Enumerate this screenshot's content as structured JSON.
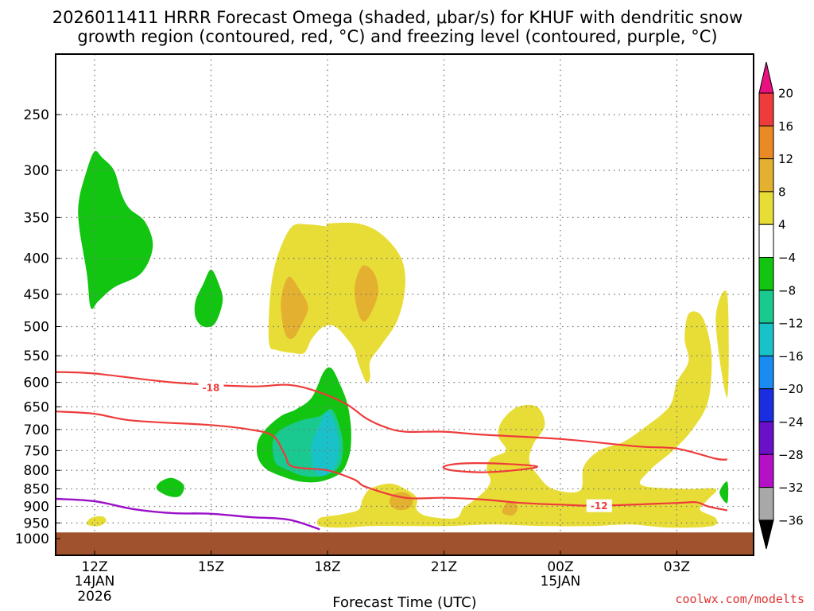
{
  "title_line1": "2026011411 HRRR Forecast Omega (shaded, μbar/s) for KHUF with dendritic snow",
  "title_line2": "growth region (contoured, red, °C) and freezing level (contoured, purple, °C)",
  "credit": "coolwx.com/modelts",
  "colors": {
    "frame": "#000000",
    "grid": "#777777",
    "terrain": "#a0522d",
    "dgz": "#ee3b3b",
    "freezing": "#9a10c8",
    "credit": "#e03030"
  },
  "chart_data": {
    "type": "contour",
    "title": "2026011411 HRRR Forecast Omega (shaded, μbar/s) for KHUF with dendritic snow growth region (contoured, red, °C) and freezing level (contoured, purple, °C)",
    "xlabel": "Forecast Time (UTC)",
    "ylabel": "",
    "xlim": [
      11,
      28.3
    ],
    "ylim_hpa": [
      1000,
      200
    ],
    "y_scale": "log-pressure",
    "grid": true,
    "x_ticks": [
      {
        "hour": 12,
        "label": "12Z",
        "sub1": "14JAN",
        "sub2": "2026"
      },
      {
        "hour": 15,
        "label": "15Z",
        "sub1": "",
        "sub2": ""
      },
      {
        "hour": 18,
        "label": "18Z",
        "sub1": "",
        "sub2": ""
      },
      {
        "hour": 21,
        "label": "21Z",
        "sub1": "",
        "sub2": ""
      },
      {
        "hour": 24,
        "label": "00Z",
        "sub1": "15JAN",
        "sub2": ""
      },
      {
        "hour": 27,
        "label": "03Z",
        "sub1": "",
        "sub2": ""
      }
    ],
    "y_ticks": [
      250,
      300,
      350,
      400,
      450,
      500,
      550,
      600,
      650,
      700,
      750,
      800,
      850,
      900,
      950,
      1000
    ],
    "colorbar": {
      "unit": "μbar/s",
      "levels": [
        20,
        16,
        12,
        8,
        4,
        -4,
        -8,
        -12,
        -16,
        -20,
        -24,
        -28,
        -32,
        -36
      ],
      "colors": [
        "#e8117f",
        "#ee3b3b",
        "#e98a25",
        "#e4b030",
        "#e8dd37",
        "#ffffff",
        "#11c511",
        "#1ac98f",
        "#19c2c8",
        "#1a8bf0",
        "#1a2ee0",
        "#6a10c8",
        "#b410c8",
        "#a8a8a8",
        "#000000"
      ]
    },
    "omega_regions": [
      {
        "name": "green-upper-12z",
        "value_range": [
          -8,
          -4
        ],
        "points": [
          [
            11.9,
            470
          ],
          [
            11.8,
            420
          ],
          [
            11.6,
            360
          ],
          [
            11.6,
            330
          ],
          [
            11.8,
            300
          ],
          [
            12.0,
            282
          ],
          [
            12.2,
            288
          ],
          [
            12.5,
            300
          ],
          [
            12.7,
            325
          ],
          [
            12.9,
            340
          ],
          [
            13.3,
            355
          ],
          [
            13.5,
            385
          ],
          [
            13.2,
            420
          ],
          [
            12.5,
            440
          ],
          [
            12.1,
            460
          ]
        ]
      },
      {
        "name": "green-upper-15z",
        "value_range": [
          -8,
          -4
        ],
        "points": [
          [
            14.6,
            485
          ],
          [
            14.6,
            460
          ],
          [
            14.8,
            435
          ],
          [
            15.0,
            415
          ],
          [
            15.2,
            435
          ],
          [
            15.3,
            460
          ],
          [
            15.1,
            495
          ],
          [
            14.8,
            500
          ]
        ]
      },
      {
        "name": "yellow-upper-left",
        "value_range": [
          4,
          8
        ],
        "points": [
          [
            16.5,
            530
          ],
          [
            16.5,
            470
          ],
          [
            16.6,
            420
          ],
          [
            16.8,
            385
          ],
          [
            17.1,
            360
          ],
          [
            17.5,
            358
          ],
          [
            18.0,
            360
          ],
          [
            18.0,
            357
          ],
          [
            18.8,
            357
          ],
          [
            19.4,
            370
          ],
          [
            19.9,
            400
          ],
          [
            20.0,
            440
          ],
          [
            19.8,
            490
          ],
          [
            19.4,
            530
          ],
          [
            19.1,
            560
          ],
          [
            19.1,
            590
          ],
          [
            19.0,
            600
          ],
          [
            18.8,
            565
          ],
          [
            18.7,
            540
          ],
          [
            18.5,
            520
          ],
          [
            18.2,
            500
          ],
          [
            17.9,
            500
          ],
          [
            17.6,
            520
          ],
          [
            17.4,
            545
          ],
          [
            17.1,
            545
          ],
          [
            16.7,
            540
          ]
        ]
      },
      {
        "name": "orange-left",
        "value_range": [
          8,
          12
        ],
        "points": [
          [
            16.9,
            510
          ],
          [
            16.8,
            460
          ],
          [
            17.0,
            425
          ],
          [
            17.3,
            445
          ],
          [
            17.5,
            470
          ],
          [
            17.3,
            500
          ],
          [
            17.1,
            520
          ]
        ]
      },
      {
        "name": "orange-right",
        "value_range": [
          8,
          12
        ],
        "points": [
          [
            18.8,
            480
          ],
          [
            18.7,
            440
          ],
          [
            18.9,
            410
          ],
          [
            19.2,
            420
          ],
          [
            19.3,
            450
          ],
          [
            19.0,
            490
          ]
        ]
      },
      {
        "name": "green-main-18z",
        "value_range": [
          -8,
          -4
        ],
        "points": [
          [
            16.2,
            765
          ],
          [
            16.2,
            730
          ],
          [
            16.4,
            700
          ],
          [
            16.8,
            670
          ],
          [
            17.2,
            655
          ],
          [
            17.6,
            630
          ],
          [
            17.9,
            580
          ],
          [
            18.1,
            573
          ],
          [
            18.3,
            600
          ],
          [
            18.5,
            640
          ],
          [
            18.6,
            690
          ],
          [
            18.6,
            740
          ],
          [
            18.5,
            780
          ],
          [
            18.3,
            810
          ],
          [
            17.8,
            830
          ],
          [
            17.3,
            830
          ],
          [
            16.8,
            815
          ],
          [
            16.4,
            795
          ]
        ]
      },
      {
        "name": "teal-main",
        "value_range": [
          -12,
          -8
        ],
        "points": [
          [
            16.6,
            760
          ],
          [
            16.6,
            725
          ],
          [
            16.8,
            700
          ],
          [
            17.3,
            680
          ],
          [
            17.8,
            670
          ],
          [
            18.1,
            655
          ],
          [
            18.3,
            690
          ],
          [
            18.4,
            740
          ],
          [
            18.3,
            790
          ],
          [
            17.9,
            815
          ],
          [
            17.4,
            815
          ],
          [
            17.0,
            800
          ],
          [
            16.7,
            785
          ]
        ]
      },
      {
        "name": "cyan-main",
        "value_range": [
          -16,
          -12
        ],
        "points": [
          [
            17.6,
            780
          ],
          [
            17.6,
            730
          ],
          [
            17.8,
            690
          ],
          [
            18.0,
            660
          ],
          [
            18.2,
            690
          ],
          [
            18.3,
            740
          ],
          [
            18.2,
            790
          ],
          [
            17.9,
            815
          ],
          [
            17.7,
            805
          ]
        ]
      },
      {
        "name": "green-small-14z",
        "value_range": [
          -8,
          -4
        ],
        "points": [
          [
            13.6,
            850
          ],
          [
            13.7,
            830
          ],
          [
            14.0,
            820
          ],
          [
            14.3,
            840
          ],
          [
            14.2,
            870
          ],
          [
            13.9,
            870
          ]
        ]
      },
      {
        "name": "yellow-small-12z",
        "value_range": [
          4,
          8
        ],
        "points": [
          [
            11.8,
            955
          ],
          [
            11.9,
            935
          ],
          [
            12.2,
            930
          ],
          [
            12.3,
            945
          ],
          [
            12.1,
            960
          ]
        ]
      },
      {
        "name": "yellow-lower-band",
        "value_range": [
          4,
          8
        ],
        "points": [
          [
            17.8,
            960
          ],
          [
            17.8,
            935
          ],
          [
            18.3,
            925
          ],
          [
            18.8,
            910
          ],
          [
            18.9,
            880
          ],
          [
            19.1,
            850
          ],
          [
            19.6,
            835
          ],
          [
            20.0,
            850
          ],
          [
            20.3,
            875
          ],
          [
            20.3,
            910
          ],
          [
            20.6,
            930
          ],
          [
            21.3,
            935
          ],
          [
            21.5,
            905
          ],
          [
            21.8,
            880
          ],
          [
            22.1,
            850
          ],
          [
            22.2,
            825
          ],
          [
            22.1,
            800
          ],
          [
            22.2,
            770
          ],
          [
            22.6,
            750
          ],
          [
            22.4,
            715
          ],
          [
            22.5,
            680
          ],
          [
            22.9,
            650
          ],
          [
            23.4,
            650
          ],
          [
            23.6,
            690
          ],
          [
            23.3,
            735
          ],
          [
            23.2,
            775
          ],
          [
            23.4,
            810
          ],
          [
            23.8,
            850
          ],
          [
            24.5,
            855
          ],
          [
            24.6,
            790
          ],
          [
            25.0,
            750
          ],
          [
            25.6,
            730
          ],
          [
            26.1,
            700
          ],
          [
            26.8,
            650
          ],
          [
            27.0,
            600
          ],
          [
            27.3,
            560
          ],
          [
            27.2,
            520
          ],
          [
            27.3,
            480
          ],
          [
            27.6,
            480
          ],
          [
            27.8,
            510
          ],
          [
            27.9,
            560
          ],
          [
            27.8,
            640
          ],
          [
            27.4,
            700
          ],
          [
            26.9,
            750
          ],
          [
            26.3,
            800
          ],
          [
            26.1,
            840
          ],
          [
            27.2,
            850
          ],
          [
            28.0,
            850
          ],
          [
            27.8,
            880
          ],
          [
            27.6,
            910
          ],
          [
            28.0,
            935
          ],
          [
            27.9,
            960
          ],
          [
            26.8,
            965
          ],
          [
            25.8,
            955
          ],
          [
            24.8,
            960
          ],
          [
            23.6,
            960
          ],
          [
            22.3,
            955
          ],
          [
            21.1,
            960
          ],
          [
            20.1,
            960
          ],
          [
            19.1,
            960
          ],
          [
            18.4,
            965
          ]
        ]
      },
      {
        "name": "orange-lower-19z",
        "value_range": [
          8,
          12
        ],
        "points": [
          [
            19.6,
            890
          ],
          [
            19.7,
            865
          ],
          [
            20.0,
            860
          ],
          [
            20.2,
            880
          ],
          [
            20.1,
            905
          ],
          [
            19.8,
            910
          ]
        ]
      },
      {
        "name": "orange-lower-22z",
        "value_range": [
          8,
          12
        ],
        "points": [
          [
            22.5,
            915
          ],
          [
            22.6,
            890
          ],
          [
            22.7,
            885
          ],
          [
            22.9,
            900
          ],
          [
            22.8,
            925
          ],
          [
            22.6,
            925
          ]
        ]
      },
      {
        "name": "yellow-right-edge",
        "value_range": [
          4,
          8
        ],
        "points": [
          [
            28.3,
            450
          ],
          [
            28.0,
            490
          ],
          [
            28.3,
            630
          ]
        ]
      },
      {
        "name": "green-right-edge",
        "value_range": [
          -8,
          -4
        ],
        "points": [
          [
            28.3,
            830
          ],
          [
            28.1,
            860
          ],
          [
            28.3,
            890
          ]
        ]
      }
    ],
    "dgz_contours": [
      {
        "value": -18,
        "label": "-18",
        "label_at": [
          15.0,
          610
        ],
        "points": [
          [
            11.0,
            580
          ],
          [
            12.0,
            583
          ],
          [
            14.0,
            600
          ],
          [
            16.0,
            608
          ],
          [
            17.0,
            605
          ],
          [
            17.8,
            620
          ],
          [
            18.5,
            645
          ],
          [
            19.0,
            675
          ],
          [
            19.5,
            695
          ],
          [
            20.0,
            705
          ],
          [
            21.0,
            705
          ],
          [
            22.0,
            712
          ],
          [
            24.0,
            722
          ],
          [
            26.0,
            740
          ],
          [
            27.0,
            745
          ],
          [
            28.0,
            770
          ],
          [
            28.3,
            772
          ]
        ]
      },
      {
        "value": -12,
        "label": "-12",
        "label_at": [
          25.0,
          898
        ],
        "points": [
          [
            11.0,
            660
          ],
          [
            12.0,
            665
          ],
          [
            13.0,
            680
          ],
          [
            15.0,
            690
          ],
          [
            16.0,
            700
          ],
          [
            16.6,
            715
          ],
          [
            16.9,
            760
          ],
          [
            17.1,
            790
          ],
          [
            18.0,
            800
          ],
          [
            18.7,
            825
          ],
          [
            19.0,
            845
          ],
          [
            20.0,
            875
          ],
          [
            21.0,
            875
          ],
          [
            22.0,
            880
          ],
          [
            23.0,
            890
          ],
          [
            24.0,
            895
          ],
          [
            25.0,
            898
          ],
          [
            27.0,
            890
          ],
          [
            27.5,
            888
          ],
          [
            27.8,
            900
          ],
          [
            28.3,
            912
          ]
        ]
      },
      {
        "value": -12,
        "label": "",
        "label_at": null,
        "points": [
          [
            21.0,
            790
          ],
          [
            21.5,
            782
          ],
          [
            22.5,
            783
          ],
          [
            23.4,
            790
          ],
          [
            22.8,
            800
          ],
          [
            22.0,
            805
          ],
          [
            21.2,
            800
          ],
          [
            21.0,
            790
          ]
        ]
      }
    ],
    "freezing_level": {
      "value": 0,
      "points": [
        [
          11.0,
          878
        ],
        [
          12.0,
          885
        ],
        [
          13.0,
          908
        ],
        [
          14.0,
          920
        ],
        [
          15.0,
          922
        ],
        [
          16.0,
          932
        ],
        [
          17.0,
          940
        ],
        [
          17.8,
          970
        ]
      ]
    },
    "surface_pressure_hpa": 980
  }
}
